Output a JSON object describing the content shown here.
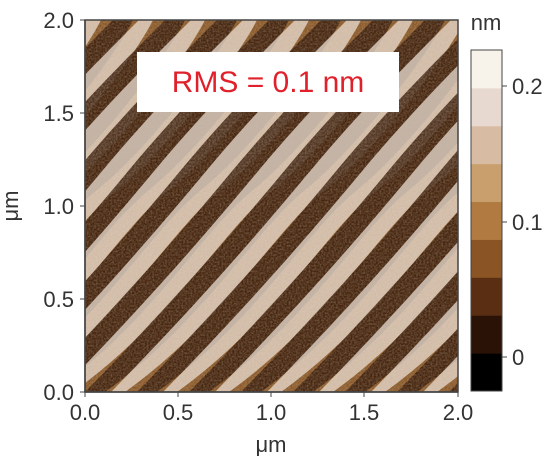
{
  "image": {
    "annotation": "RMS = 0.1 nm",
    "annotation_color": "#e0202a",
    "x_axis": {
      "label": "μm",
      "ticks": [
        "0.0",
        "0.5",
        "1.0",
        "1.5",
        "2.0"
      ]
    },
    "y_axis": {
      "label": "μm",
      "ticks": [
        "0.0",
        "0.5",
        "1.0",
        "1.5",
        "2.0"
      ]
    },
    "colorbar": {
      "unit": "nm",
      "ticks": [
        "0",
        "0.1",
        "0.2"
      ],
      "colors": [
        "#000000",
        "#2b1206",
        "#5a2e12",
        "#8a5424",
        "#b07a40",
        "#c9a06d",
        "#d8bba3",
        "#e8d9d0",
        "#f7f3ea"
      ]
    },
    "palette": {
      "dark": "#3a1c0b",
      "mid": "#9a6a35",
      "light": "#f2e6dc"
    }
  }
}
